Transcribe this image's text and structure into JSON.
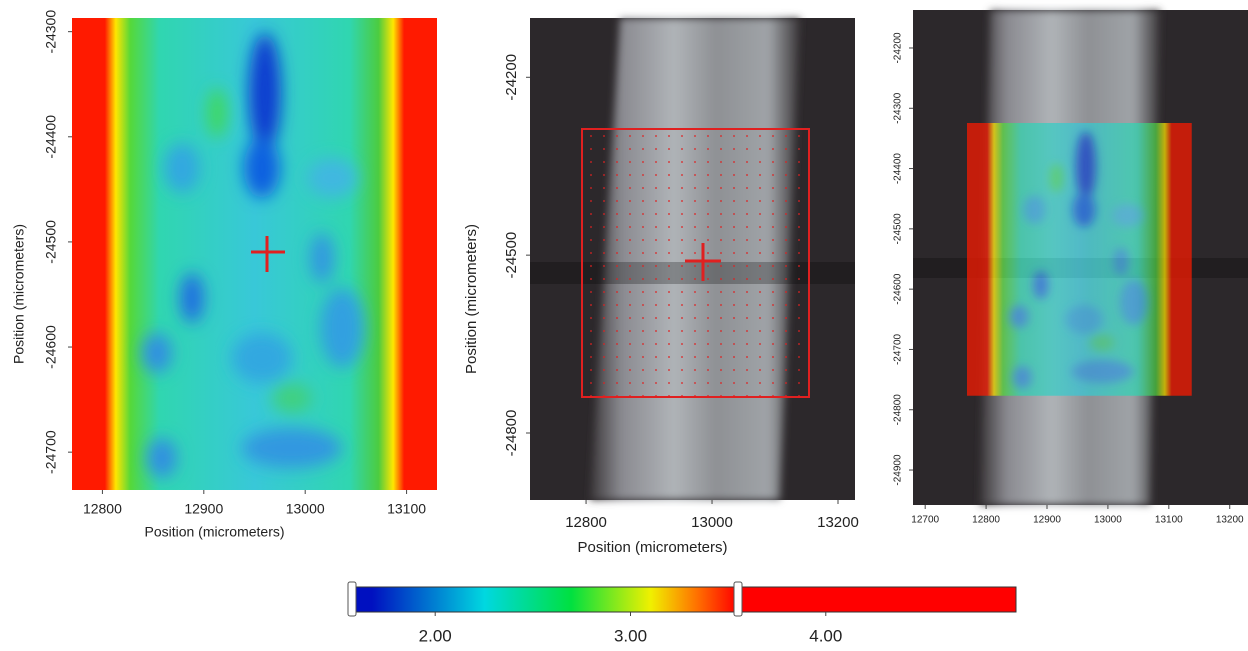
{
  "chart_data": [
    {
      "type": "heatmap",
      "xlabel": "Position (micrometers)",
      "ylabel": "Position (micrometers)",
      "xlim": [
        12770,
        13130
      ],
      "xticks": [
        12800,
        12900,
        13000,
        13100
      ],
      "ylim": [
        -24736,
        -24287
      ],
      "yticks": [
        -24300,
        -24400,
        -24500,
        -24600,
        -24700
      ]
    },
    {
      "type": "image",
      "xlabel": "Position (micrometers)",
      "ylabel": "Position (micrometers)",
      "xlim": [
        12711,
        13227
      ],
      "xticks": [
        12800,
        13000,
        13200
      ],
      "ylim": [
        -24913,
        -24100
      ],
      "yticks": [
        -24200,
        -24500,
        -24800
      ]
    },
    {
      "type": "overlay",
      "xlim": [
        12680,
        13230
      ],
      "xticks": [
        12700,
        12800,
        12900,
        13000,
        13100,
        13200
      ],
      "ylim": [
        -24958,
        -24137
      ],
      "yticks": [
        -24200,
        -24300,
        -24400,
        -24500,
        -24600,
        -24700,
        -24800,
        -24900
      ]
    },
    {
      "type": "colorbar",
      "xlim": [
        1.574,
        4.974
      ],
      "xticks": [
        {
          "value": 2,
          "label": "2.00"
        },
        {
          "value": 3,
          "label": "3.00"
        },
        {
          "value": 4,
          "label": "4.00"
        }
      ]
    }
  ]
}
